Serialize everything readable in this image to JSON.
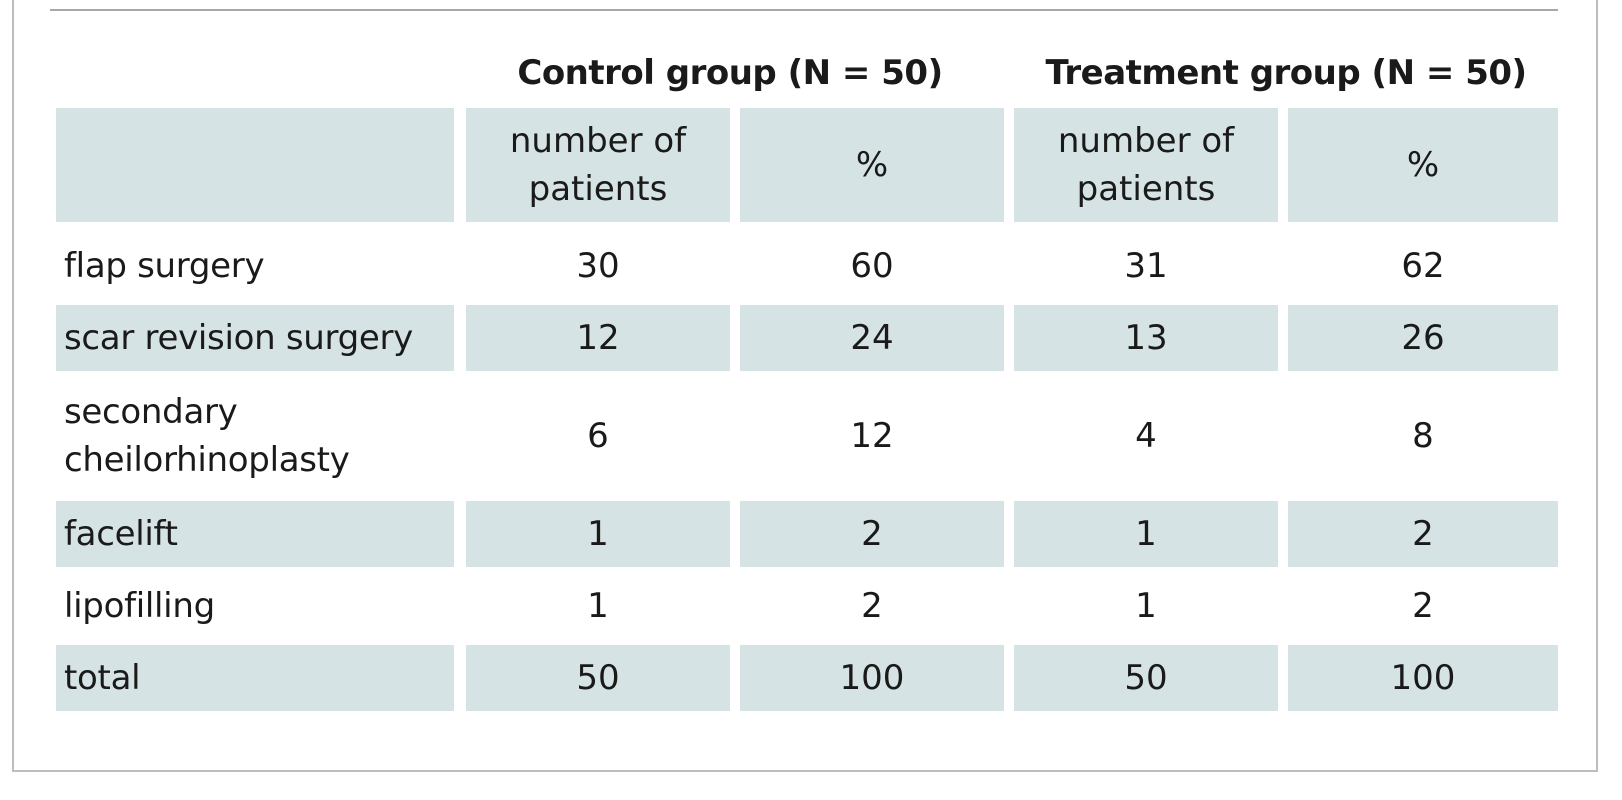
{
  "table": {
    "group_headers": [
      "Control group (N = 50)",
      "Treatment group (N = 50)"
    ],
    "sub_headers": [
      "number of patients",
      "%",
      "number of patients",
      "%"
    ],
    "rows": [
      {
        "label": "flap surgery",
        "values": [
          "30",
          "60",
          "31",
          "62"
        ]
      },
      {
        "label": "scar revision surgery",
        "values": [
          "12",
          "24",
          "13",
          "26"
        ]
      },
      {
        "label": "secondary cheilorhinoplasty",
        "values": [
          "6",
          "12",
          "4",
          "8"
        ]
      },
      {
        "label": "facelift",
        "values": [
          "1",
          "2",
          "1",
          "2"
        ]
      },
      {
        "label": "lipofilling",
        "values": [
          "1",
          "2",
          "1",
          "2"
        ]
      },
      {
        "label": "total",
        "values": [
          "50",
          "100",
          "50",
          "100"
        ]
      }
    ]
  }
}
